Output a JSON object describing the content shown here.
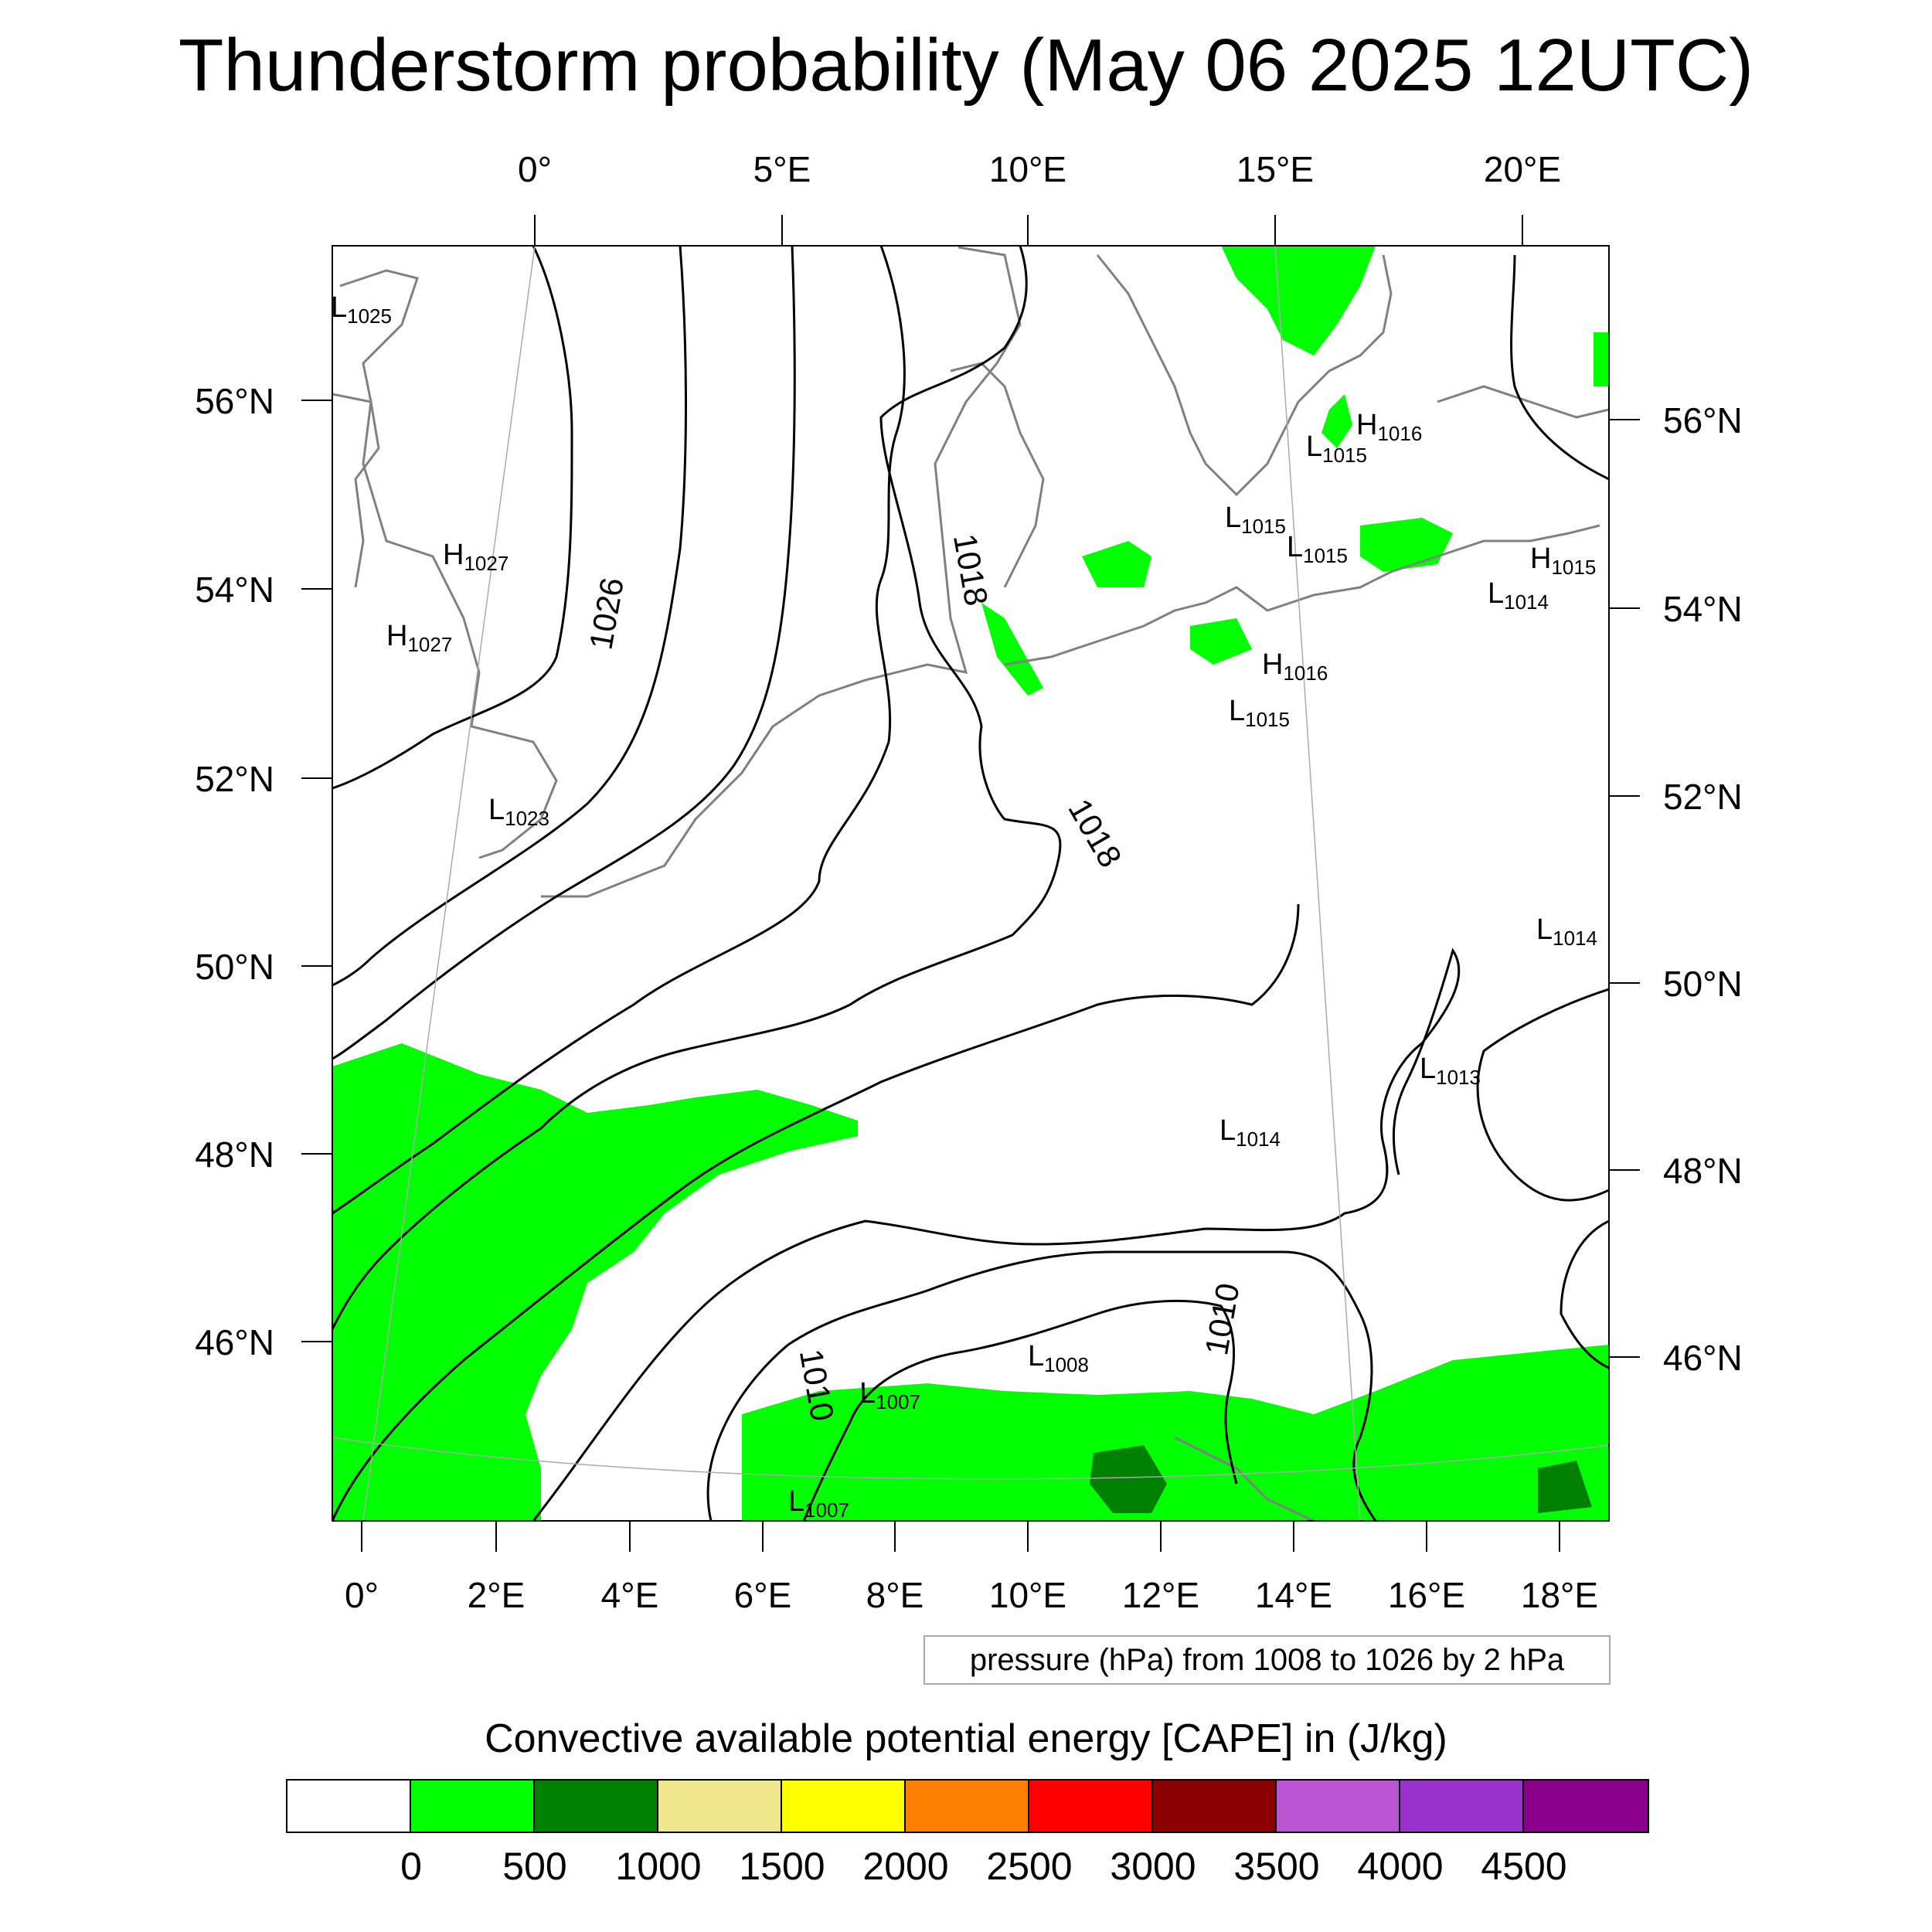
{
  "title": "Thunderstorm probability (May 06 2025 12UTC)",
  "top_lon_labels": [
    "0°",
    "5°E",
    "10°E",
    "15°E",
    "20°E"
  ],
  "left_lat_labels": [
    "56°N",
    "54°N",
    "52°N",
    "50°N",
    "48°N",
    "46°N"
  ],
  "right_lat_labels": [
    "56°N",
    "54°N",
    "52°N",
    "50°N",
    "48°N",
    "46°N"
  ],
  "bottom_lon_labels": [
    "0°",
    "2°E",
    "4°E",
    "6°E",
    "8°E",
    "10°E",
    "12°E",
    "14°E",
    "16°E",
    "18°E"
  ],
  "pressure_note": "pressure (hPa) from 1008 to 1026 by 2 hPa",
  "cape_title": "Convective available potential energy [CAPE] in (J/kg)",
  "colorbar": {
    "colors": [
      "#ffffff",
      "#00ff00",
      "#008000",
      "#f0e68c",
      "#ffff00",
      "#ff8000",
      "#ff0000",
      "#8b0000",
      "#ba55d3",
      "#9932cc",
      "#8b008b"
    ],
    "labels": [
      "0",
      "500",
      "1000",
      "1500",
      "2000",
      "2500",
      "3000",
      "3500",
      "4000",
      "4500"
    ]
  },
  "contour_labels": [
    "1026",
    "1018",
    "1018",
    "1010",
    "1010"
  ],
  "pressure_centers": [
    {
      "type": "L",
      "value": "1025"
    },
    {
      "type": "H",
      "value": "1027"
    },
    {
      "type": "H",
      "value": "1027"
    },
    {
      "type": "L",
      "value": "1023"
    },
    {
      "type": "H",
      "value": "1016"
    },
    {
      "type": "L",
      "value": "1015"
    },
    {
      "type": "L",
      "value": "1015"
    },
    {
      "type": "L",
      "value": "1015"
    },
    {
      "type": "H",
      "value": "1015"
    },
    {
      "type": "L",
      "value": "1014"
    },
    {
      "type": "H",
      "value": "1016"
    },
    {
      "type": "L",
      "value": "1015"
    },
    {
      "type": "L",
      "value": "1014"
    },
    {
      "type": "L",
      "value": "1013"
    },
    {
      "type": "L",
      "value": "1014"
    },
    {
      "type": "L",
      "value": "1008"
    },
    {
      "type": "L",
      "value": "1007"
    },
    {
      "type": "L",
      "value": "1007"
    }
  ]
}
